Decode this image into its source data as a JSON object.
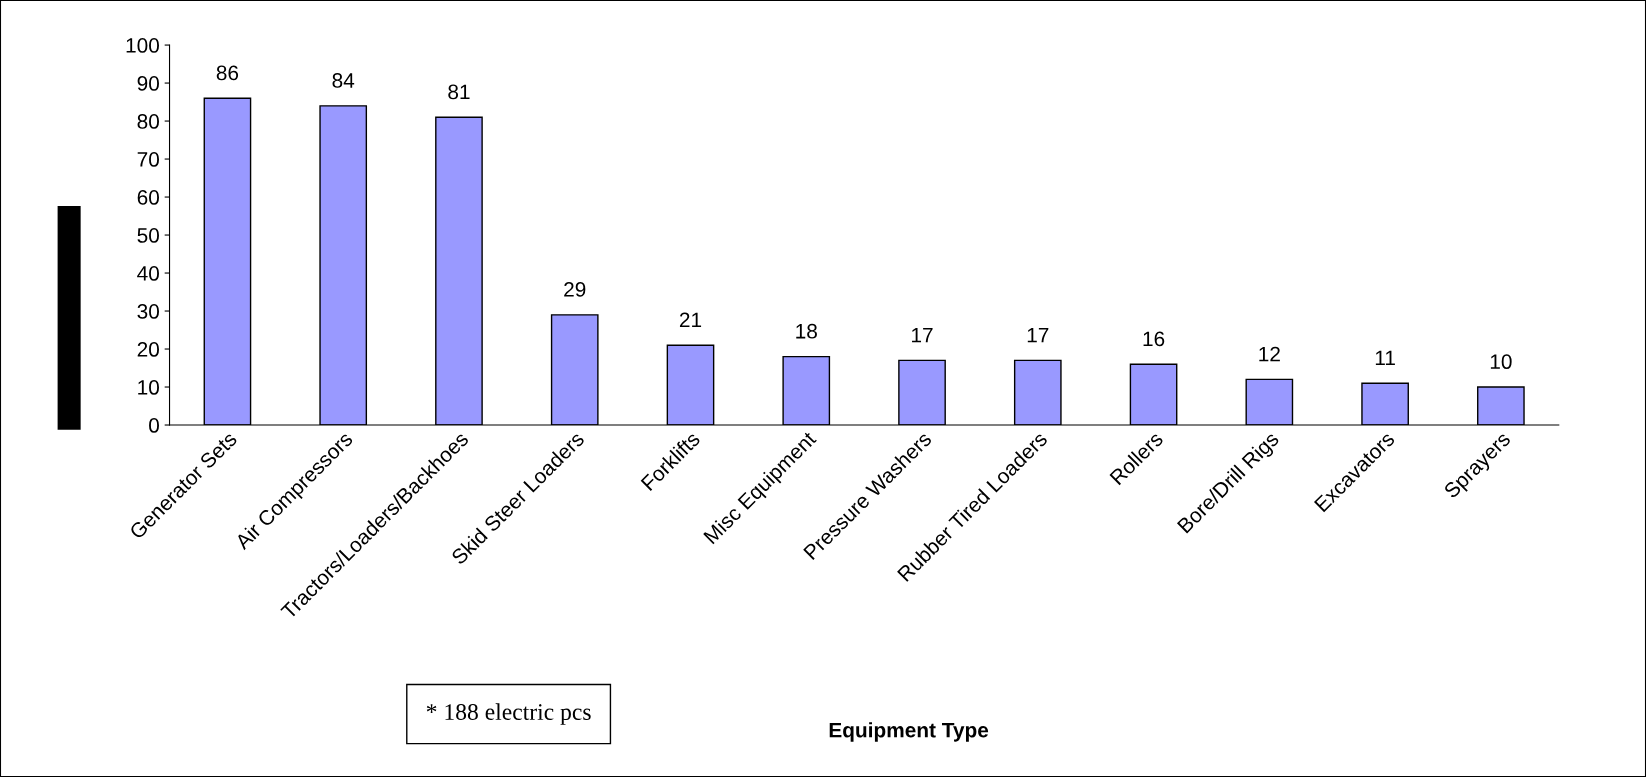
{
  "chart_data": {
    "type": "bar",
    "xlabel": "Equipment Type",
    "categories": [
      "Generator Sets",
      "Air Compressors",
      "Tractors/Loaders/Backhoes",
      "Skid Steer Loaders",
      "Forklifts",
      "Misc Equipment",
      "Pressure Washers",
      "Rubber Tired Loaders",
      "Rollers",
      "Bore/Drill Rigs",
      "Excavators",
      "Sprayers"
    ],
    "values": [
      86,
      84,
      81,
      29,
      21,
      18,
      17,
      17,
      16,
      12,
      11,
      10
    ],
    "color": "#9999ff",
    "ylim": [
      0,
      100
    ],
    "yticks": [
      0,
      10,
      20,
      30,
      40,
      50,
      60,
      70,
      80,
      90,
      100
    ],
    "data_labels": true,
    "grid": false,
    "legend": false,
    "annotations": [
      "* 188 electric pcs"
    ]
  }
}
